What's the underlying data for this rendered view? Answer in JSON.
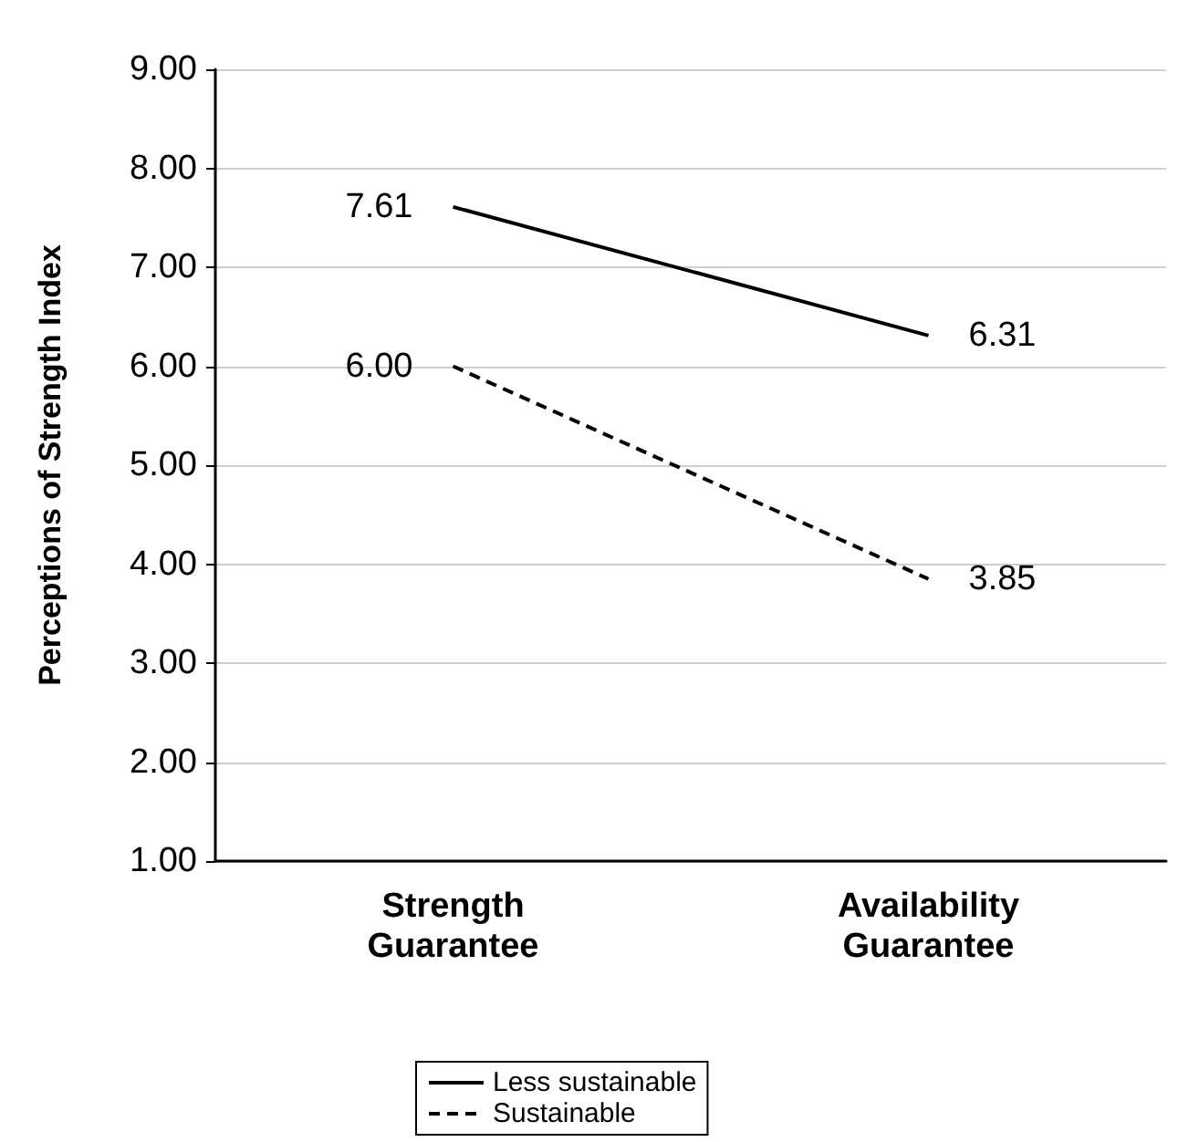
{
  "chart_data": {
    "type": "line",
    "ylabel": "Perceptions of Strength Index",
    "categories": [
      "Strength\nGuarantee",
      "Availability\nGuarantee"
    ],
    "series": [
      {
        "name": "Less sustainable",
        "color": "#000000",
        "line_style": "solid",
        "values": [
          7.61,
          6.31
        ],
        "value_labels": [
          "7.61",
          "6.31"
        ]
      },
      {
        "name": "Sustainable",
        "color": "#000000",
        "line_style": "dashed",
        "values": [
          6.0,
          3.85
        ],
        "value_labels": [
          "6.00",
          "3.85"
        ]
      }
    ],
    "ylim": [
      1,
      9
    ],
    "yticks": [
      {
        "value": 1,
        "label": "1.00"
      },
      {
        "value": 2,
        "label": "2.00"
      },
      {
        "value": 3,
        "label": "3.00"
      },
      {
        "value": 4,
        "label": "4.00"
      },
      {
        "value": 5,
        "label": "5.00"
      },
      {
        "value": 6,
        "label": "6.00"
      },
      {
        "value": 7,
        "label": "7.00"
      },
      {
        "value": 8,
        "label": "8.00"
      },
      {
        "value": 9,
        "label": "9.00"
      }
    ],
    "grid": "y",
    "legend": "bottom",
    "marker": "none"
  }
}
